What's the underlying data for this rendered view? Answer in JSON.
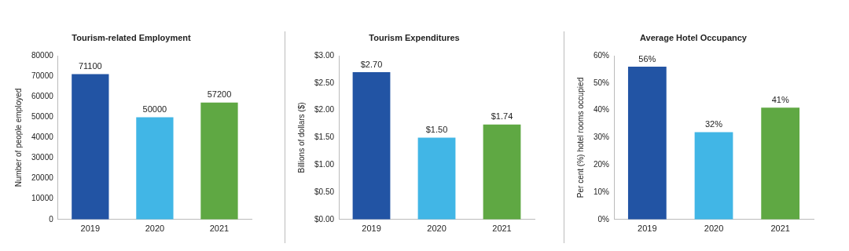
{
  "chart_data": [
    {
      "type": "bar",
      "title": "Tourism-related Employment",
      "ylabel": "Number of people employed",
      "categories": [
        "2019",
        "2020",
        "2021"
      ],
      "values": [
        71100,
        50000,
        57200
      ],
      "colors": [
        "#2254a4",
        "#41b6e6",
        "#5fa843"
      ],
      "ylim": [
        0,
        80000
      ],
      "yticks": [
        0,
        10000,
        20000,
        30000,
        40000,
        50000,
        60000,
        70000,
        80000
      ],
      "data_labels": true
    },
    {
      "type": "bar",
      "title": "Tourism Expenditures",
      "ylabel": "Billions of dollars ($)",
      "categories": [
        "2019",
        "2020",
        "2021"
      ],
      "values": [
        2.7,
        1.5,
        1.74
      ],
      "value_labels": [
        "$2.70",
        "$1.50",
        "$1.74"
      ],
      "colors": [
        "#2254a4",
        "#41b6e6",
        "#5fa843"
      ],
      "ylim": [
        0,
        3
      ],
      "yticks": [
        {
          "value": 0,
          "label": "$0.00"
        },
        {
          "value": 0.5,
          "label": "$0.50"
        },
        {
          "value": 1,
          "label": "$1.00"
        },
        {
          "value": 1.5,
          "label": "$1.50"
        },
        {
          "value": 2,
          "label": "$2.00"
        },
        {
          "value": 2.5,
          "label": "$2.50"
        },
        {
          "value": 3,
          "label": "$3.00"
        }
      ]
    },
    {
      "type": "bar",
      "title": "Average Hotel Occupancy",
      "ylabel": "Per cent (%) hotel rooms occupied",
      "categories": [
        "2019",
        "2020",
        "2021"
      ],
      "values": [
        56,
        32,
        41
      ],
      "value_labels": [
        "56%",
        "32%",
        "41%"
      ],
      "colors": [
        "#2254a4",
        "#41b6e6",
        "#5fa843"
      ],
      "ylim": [
        0,
        60
      ],
      "yticks": [
        {
          "value": 0,
          "label": "0%"
        },
        {
          "value": 10,
          "label": "10%"
        },
        {
          "value": 20,
          "label": "20%"
        },
        {
          "value": 30,
          "label": "30%"
        },
        {
          "value": 40,
          "label": "40%"
        },
        {
          "value": 50,
          "label": "50%"
        },
        {
          "value": 60,
          "label": "60%"
        }
      ]
    }
  ]
}
